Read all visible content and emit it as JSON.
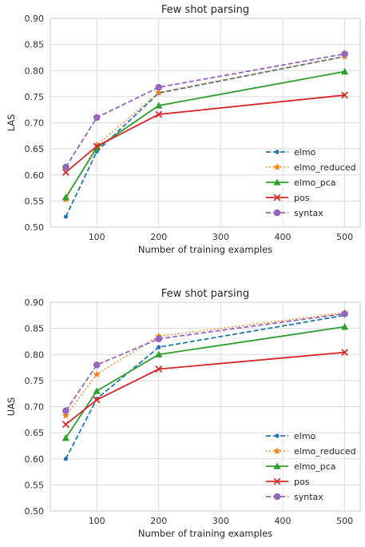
{
  "chart_data": [
    {
      "type": "line",
      "title": "Few shot parsing",
      "xlabel": "Number of training examples",
      "ylabel": "LAS",
      "x": [
        50,
        100,
        200,
        500
      ],
      "xlim": [
        25,
        525
      ],
      "ylim": [
        0.5,
        0.9
      ],
      "xticks": [
        "100",
        "200",
        "300",
        "400",
        "500"
      ],
      "yticks": [
        "0.50",
        "0.55",
        "0.60",
        "0.65",
        "0.70",
        "0.75",
        "0.80",
        "0.85",
        "0.90"
      ],
      "grid": true,
      "legend_position": "lower-right",
      "series": [
        {
          "name": "elmo",
          "values": [
            0.52,
            0.645,
            0.757,
            0.827
          ],
          "color": "#1f77b4",
          "linestyle": "dashed",
          "marker": "dot"
        },
        {
          "name": "elmo_reduced",
          "values": [
            0.553,
            0.657,
            0.758,
            0.827
          ],
          "color": "#ff7f0e",
          "linestyle": "dotted",
          "marker": "star"
        },
        {
          "name": "elmo_pca",
          "values": [
            0.557,
            0.652,
            0.733,
            0.798
          ],
          "color": "#2ca02c",
          "linestyle": "solid",
          "marker": "triangle"
        },
        {
          "name": "pos",
          "values": [
            0.605,
            0.655,
            0.716,
            0.753
          ],
          "color": "#d62728",
          "linestyle": "solid",
          "marker": "x"
        },
        {
          "name": "syntax",
          "values": [
            0.615,
            0.71,
            0.768,
            0.832
          ],
          "color": "#9467bd",
          "linestyle": "dashed",
          "marker": "circle"
        }
      ]
    },
    {
      "type": "line",
      "title": "Few shot parsing",
      "xlabel": "Number of training examples",
      "ylabel": "UAS",
      "x": [
        50,
        100,
        200,
        500
      ],
      "xlim": [
        25,
        525
      ],
      "ylim": [
        0.5,
        0.9
      ],
      "xticks": [
        "100",
        "200",
        "300",
        "400",
        "500"
      ],
      "yticks": [
        "0.50",
        "0.55",
        "0.60",
        "0.65",
        "0.70",
        "0.75",
        "0.80",
        "0.85",
        "0.90"
      ],
      "grid": true,
      "legend_position": "lower-right",
      "series": [
        {
          "name": "elmo",
          "values": [
            0.6,
            0.715,
            0.814,
            0.875
          ],
          "color": "#1f77b4",
          "linestyle": "dashed",
          "marker": "dot"
        },
        {
          "name": "elmo_reduced",
          "values": [
            0.683,
            0.762,
            0.835,
            0.88
          ],
          "color": "#ff7f0e",
          "linestyle": "dotted",
          "marker": "star"
        },
        {
          "name": "elmo_pca",
          "values": [
            0.64,
            0.73,
            0.8,
            0.853
          ],
          "color": "#2ca02c",
          "linestyle": "solid",
          "marker": "triangle"
        },
        {
          "name": "pos",
          "values": [
            0.666,
            0.713,
            0.772,
            0.804
          ],
          "color": "#d62728",
          "linestyle": "solid",
          "marker": "x"
        },
        {
          "name": "syntax",
          "values": [
            0.692,
            0.78,
            0.83,
            0.878
          ],
          "color": "#9467bd",
          "linestyle": "dashed",
          "marker": "circle"
        }
      ]
    }
  ]
}
